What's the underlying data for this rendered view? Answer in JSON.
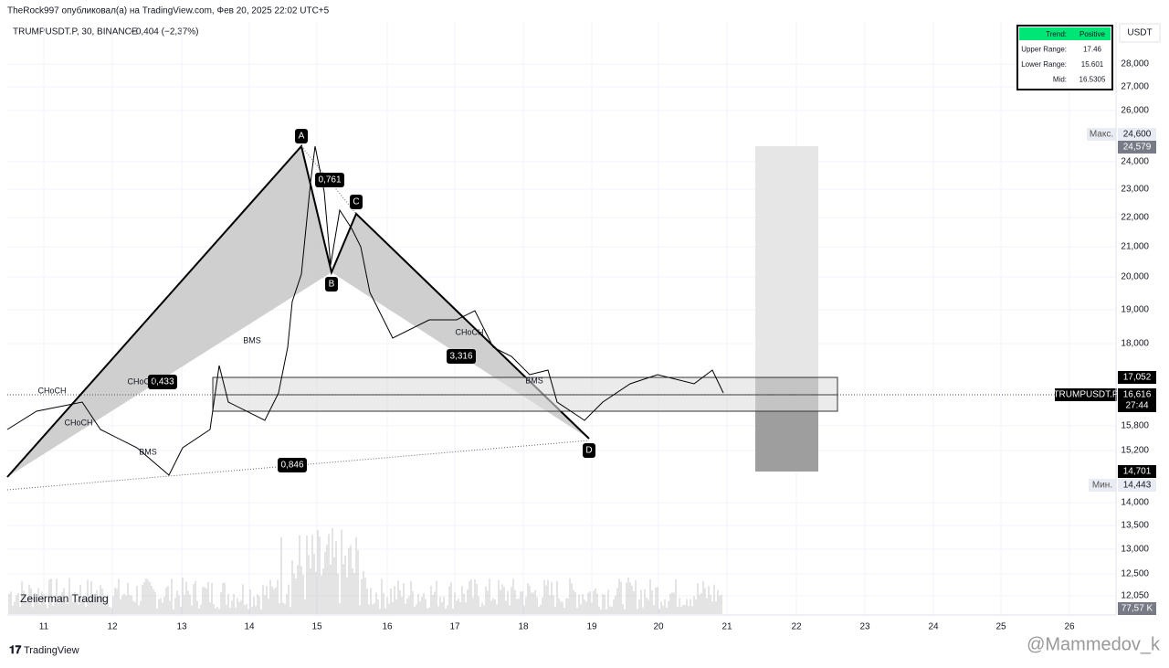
{
  "header": {
    "publisher": "TheRock997 опубликовал(а) на TradingView.com, Фев 20, 2025 22:02 UTC+5"
  },
  "legend": {
    "symbol": "TRUMPUSDT.P, 30, BINANCE",
    "change": "−0,404 (−2,37%)"
  },
  "currency": "USDT",
  "price_axis": [
    "28,000",
    "27,000",
    "26,000",
    "24,000",
    "23,000",
    "22,000",
    "21,000",
    "20,000",
    "19,000",
    "18,000",
    "15,800",
    "15,200",
    "14,000",
    "13,500",
    "13,000",
    "12,500",
    "12,050"
  ],
  "price_tags": {
    "max_label": "Макс.",
    "max_value": "24,600",
    "high": "24,579",
    "upper": "17,052",
    "symbol": "TRUMPUSDT.P",
    "last": "16,616",
    "countdown": "27:44",
    "lower": "14,701",
    "min_label": "Мин.",
    "min_value": "14,443",
    "volume": "77,57 K"
  },
  "date_axis": [
    "11",
    "12",
    "13",
    "14",
    "15",
    "16",
    "17",
    "18",
    "19",
    "20",
    "21",
    "22",
    "23",
    "24",
    "25",
    "26"
  ],
  "pattern": {
    "points": [
      "A",
      "B",
      "C",
      "D"
    ],
    "ratios": [
      "0,761",
      "0,433",
      "3,316",
      "0,846"
    ]
  },
  "structure_labels": [
    "CHoCH",
    "CHoCH",
    "CHoCH",
    "CHoCH",
    "BMS",
    "BMS",
    "BMS"
  ],
  "info_table": {
    "rows": [
      [
        "Trend:",
        "Positive"
      ],
      [
        "Upper Range:",
        "17.46"
      ],
      [
        "Lower Range:",
        "15.601"
      ],
      [
        "Mid:",
        "16.5305"
      ]
    ]
  },
  "watermark": "Zeiierman Trading",
  "footer": {
    "brand": "TradingView",
    "author": "@Mammedov_k"
  }
}
